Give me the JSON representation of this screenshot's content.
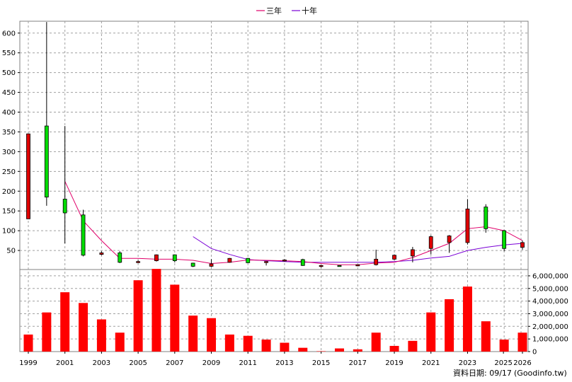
{
  "chart_data": {
    "type": "candlestick",
    "legend": [
      {
        "name": "三年",
        "color": "#e0006a"
      },
      {
        "name": "十年",
        "color": "#7a00d6"
      }
    ],
    "price_axis": {
      "ylim": [
        0,
        630
      ],
      "ticks": [
        50,
        100,
        150,
        200,
        250,
        300,
        350,
        400,
        450,
        500,
        550,
        600
      ]
    },
    "volume_axis": {
      "ylim": [
        0,
        6500000
      ],
      "ticks": [
        "0",
        "1,000,000",
        "2,000,000",
        "3,000,000",
        "4,000,000",
        "5,000,000",
        "6,000,000"
      ],
      "values": [
        0,
        1000000,
        2000000,
        3000000,
        4000000,
        5000000,
        6000000
      ]
    },
    "x_tick_labels": [
      "1999",
      "2001",
      "2003",
      "2005",
      "2007",
      "2009",
      "2011",
      "2013",
      "2015",
      "2017",
      "2019",
      "2021",
      "2023",
      "2025",
      "2026"
    ],
    "years": [
      "1999",
      "2000",
      "2001",
      "2002",
      "2003",
      "2004",
      "2005",
      "2006",
      "2007",
      "2008",
      "2009",
      "2010",
      "2011",
      "2012",
      "2013",
      "2014",
      "2015",
      "2016",
      "2017",
      "2018",
      "2019",
      "2020",
      "2021",
      "2022",
      "2023",
      "2024",
      "2025",
      "2026"
    ],
    "candles": [
      {
        "open": 130,
        "close": 345,
        "high": 345,
        "low": 130
      },
      {
        "open": 365,
        "close": 185,
        "high": 628,
        "low": 163
      },
      {
        "open": 180,
        "close": 145,
        "high": 365,
        "low": 68
      },
      {
        "open": 140,
        "close": 38,
        "high": 153,
        "low": 35
      },
      {
        "open": 40,
        "close": 44,
        "high": 48,
        "low": 38
      },
      {
        "open": 44,
        "close": 20,
        "high": 48,
        "low": 18
      },
      {
        "open": 20,
        "close": 22,
        "high": 25,
        "low": 18
      },
      {
        "open": 24,
        "close": 39,
        "high": 40,
        "low": 22
      },
      {
        "open": 39,
        "close": 24,
        "high": 40,
        "low": 20
      },
      {
        "open": 18,
        "close": 10,
        "high": 19,
        "low": 8
      },
      {
        "open": 10,
        "close": 16,
        "high": 28,
        "low": 8
      },
      {
        "open": 20,
        "close": 30,
        "high": 31,
        "low": 19
      },
      {
        "open": 30,
        "close": 19,
        "high": 31,
        "low": 18
      },
      {
        "open": 20,
        "close": 22,
        "high": 23,
        "low": 12
      },
      {
        "open": 24,
        "close": 26,
        "high": 28,
        "low": 22
      },
      {
        "open": 27,
        "close": 12,
        "high": 29,
        "low": 11
      },
      {
        "open": 11,
        "close": 12,
        "high": 13,
        "low": 7
      },
      {
        "open": 12,
        "close": 11,
        "high": 12,
        "low": 9
      },
      {
        "open": 11,
        "close": 14,
        "high": 14,
        "low": 10
      },
      {
        "open": 14,
        "close": 28,
        "high": 52,
        "low": 12
      },
      {
        "open": 28,
        "close": 38,
        "high": 40,
        "low": 26
      },
      {
        "open": 36,
        "close": 52,
        "high": 59,
        "low": 20
      },
      {
        "open": 55,
        "close": 85,
        "high": 88,
        "low": 40
      },
      {
        "open": 70,
        "close": 87,
        "high": 89,
        "low": 44
      },
      {
        "open": 70,
        "close": 155,
        "high": 180,
        "low": 65
      },
      {
        "open": 160,
        "close": 105,
        "high": 167,
        "low": 95
      },
      {
        "open": 100,
        "close": 55,
        "high": 102,
        "low": 48
      },
      {
        "open": 58,
        "close": 70,
        "high": 75,
        "low": 52
      }
    ],
    "ma3": [
      null,
      null,
      225,
      125,
      75,
      30,
      30,
      28,
      28,
      25,
      17,
      20,
      26,
      25,
      24,
      22,
      17,
      14,
      14,
      18,
      20,
      32,
      50,
      68,
      105,
      110,
      100,
      75
    ],
    "ma10": [
      null,
      null,
      null,
      null,
      null,
      null,
      null,
      null,
      null,
      85,
      55,
      40,
      27,
      24,
      22,
      20,
      20,
      20,
      20,
      20,
      22,
      25,
      31,
      35,
      50,
      58,
      64,
      68
    ],
    "volume": [
      1350000,
      3100000,
      4700000,
      3850000,
      2550000,
      1500000,
      5650000,
      6550000,
      5300000,
      2850000,
      2650000,
      1350000,
      1250000,
      950000,
      700000,
      300000,
      30000,
      250000,
      180000,
      1500000,
      450000,
      850000,
      3100000,
      4150000,
      5150000,
      2400000,
      950000,
      1500000
    ]
  },
  "footer": {
    "date_label": "資料日期: 09/17",
    "source_label": "(Goodinfo.tw)"
  }
}
